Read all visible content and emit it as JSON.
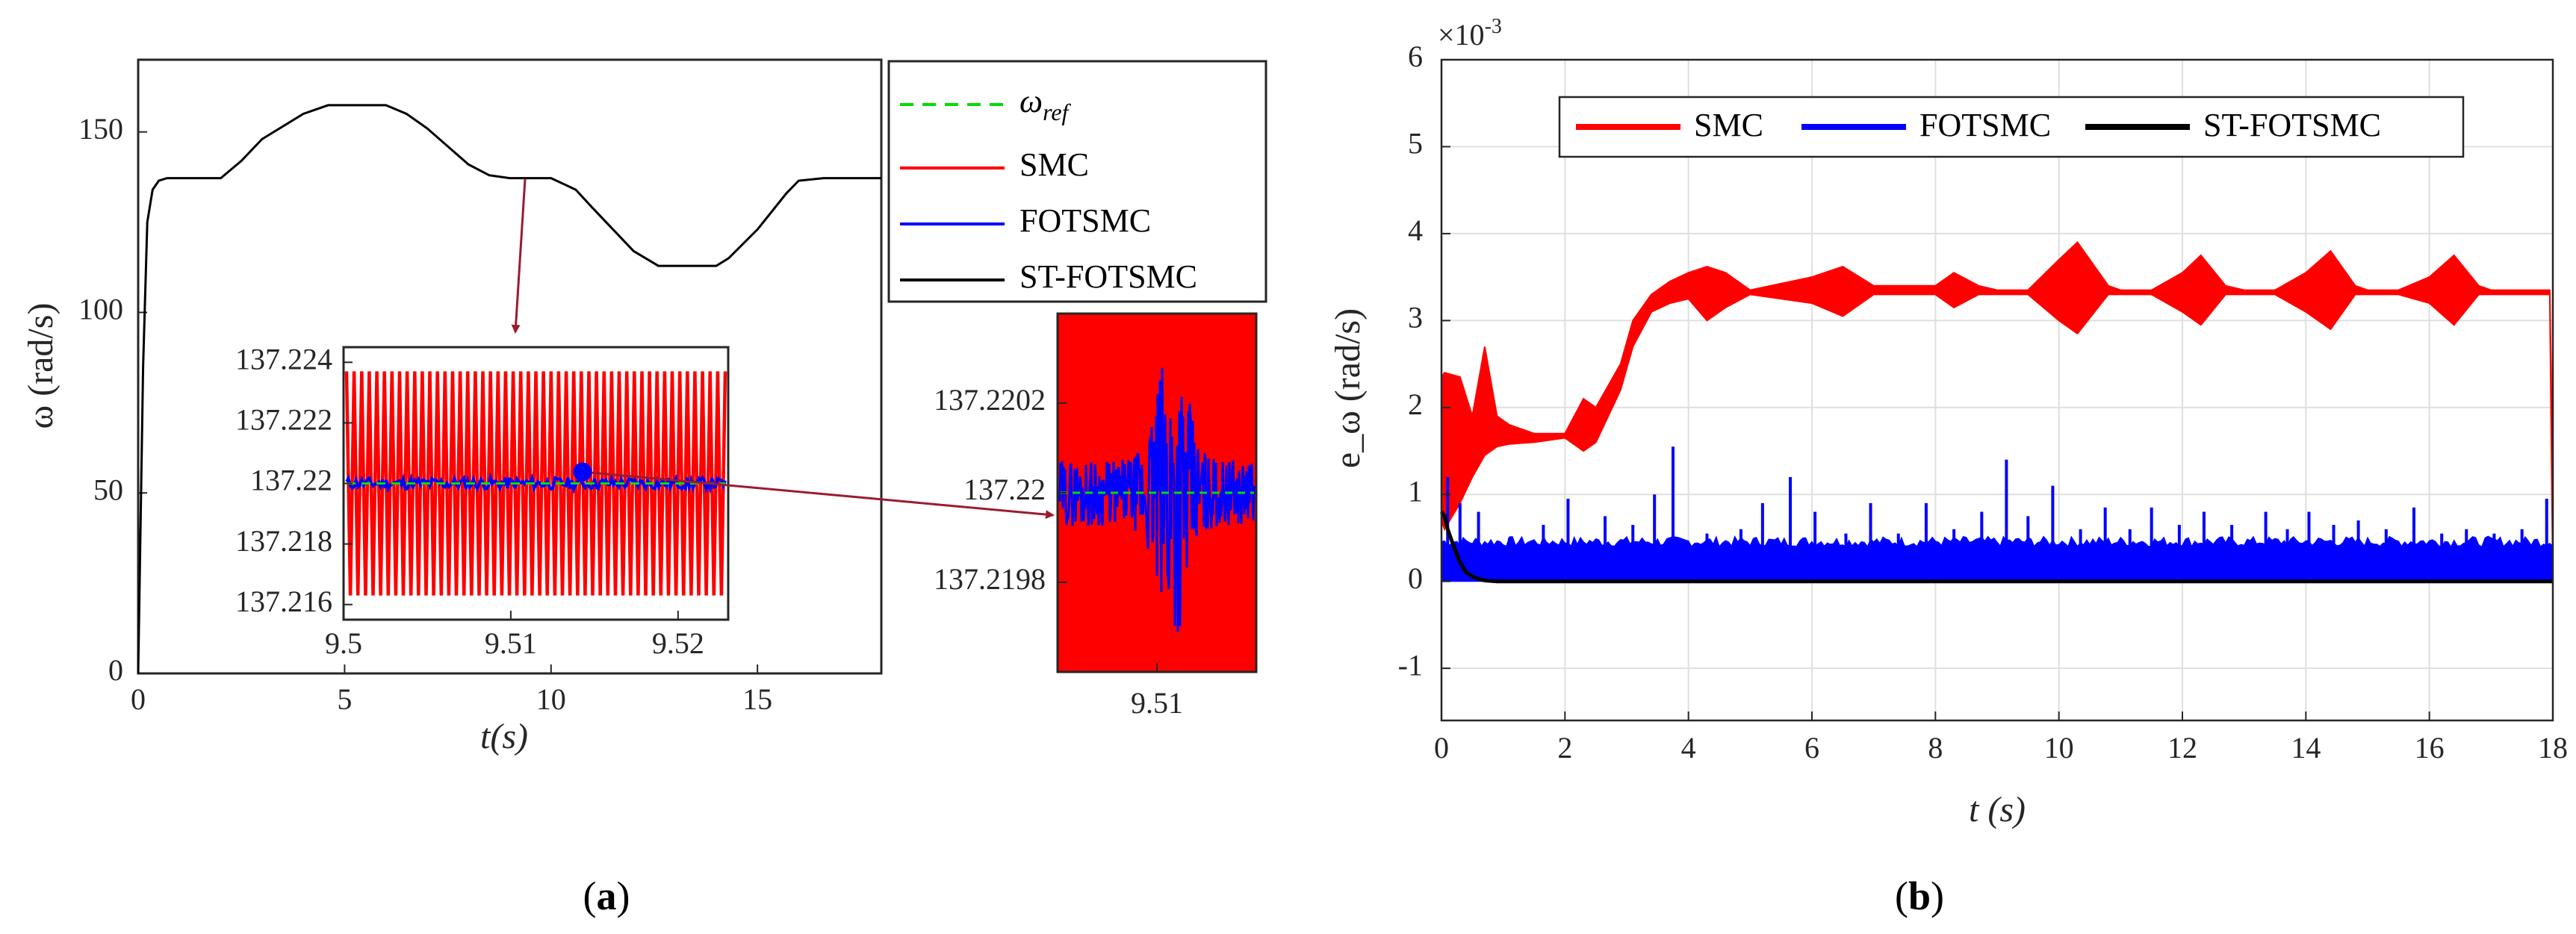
{
  "colors": {
    "smc": "#ff0000",
    "fotsmc": "#0000ff",
    "st_fotsmc": "#000000",
    "ref": "#00dd00",
    "arrow": "#9b1b30",
    "grid": "#dfdfdf",
    "axis": "#262626"
  },
  "chart_data": [
    {
      "id": "a-main",
      "type": "line",
      "ylabel": "ω (rad/s)",
      "xlabel": "t(s)",
      "xlim": [
        0,
        18
      ],
      "ylim": [
        0,
        170
      ],
      "xticks": [
        0,
        5,
        10,
        15
      ],
      "xtick_labels": [
        "0",
        "5",
        "10",
        "15"
      ],
      "yticks": [
        0,
        50,
        100,
        150
      ],
      "ytick_labels": [
        "0",
        "50",
        "100",
        "150"
      ],
      "series": [
        {
          "name": "ST-FOTSMC",
          "x": [
            0,
            0.12,
            0.22,
            0.35,
            0.5,
            0.7,
            1,
            2,
            2.5,
            3,
            4,
            4.6,
            5,
            5.5,
            6,
            6.5,
            7,
            8,
            8.5,
            9,
            9.5,
            10,
            10.6,
            11,
            12,
            12.6,
            13,
            14,
            14.3,
            15,
            15.7,
            16,
            16.6,
            17,
            18
          ],
          "y": [
            0,
            85,
            125,
            134,
            136.5,
            137.2,
            137.2,
            137.2,
            142,
            148,
            155,
            157.4,
            157.4,
            157.4,
            157.4,
            155,
            151,
            141,
            138,
            137.2,
            137.2,
            137.2,
            134,
            129,
            117,
            112.9,
            112.9,
            112.9,
            115,
            123,
            133,
            136.5,
            137.2,
            137.2,
            137.2
          ]
        }
      ]
    },
    {
      "id": "a-inset1",
      "type": "line",
      "xlim": [
        9.5,
        9.523
      ],
      "ylim": [
        137.2155,
        137.2245
      ],
      "xticks": [
        9.5,
        9.51,
        9.52
      ],
      "xtick_labels": [
        "9.5",
        "9.51",
        "9.52"
      ],
      "yticks": [
        137.216,
        137.218,
        137.22,
        137.222,
        137.224
      ],
      "ytick_labels": [
        "137.216",
        "137.218",
        "137.22",
        "137.222",
        "137.224"
      ],
      "series": [
        {
          "name": "SMC",
          "amplitude": 0.0037,
          "center": 137.22,
          "cycles": 50
        },
        {
          "name": "FOTSMC",
          "amplitude": 0.0002,
          "center": 137.22
        },
        {
          "name": "ω_ref",
          "value": 137.22
        }
      ]
    },
    {
      "id": "a-inset2",
      "type": "line",
      "xlim": [
        9.5096,
        9.5104
      ],
      "ylim": [
        137.2196,
        137.2204
      ],
      "xticks": [
        9.51
      ],
      "xtick_labels": [
        "9.51"
      ],
      "yticks": [
        137.2198,
        137.22,
        137.2202
      ],
      "ytick_labels": [
        "137.2198",
        "137.22",
        "137.2202"
      ],
      "series": [
        {
          "name": "SMC",
          "band": [
            137.2196,
            137.2204
          ]
        },
        {
          "name": "FOTSMC",
          "amplitude": 0.0003,
          "center": 137.22
        },
        {
          "name": "ω_ref",
          "value": 137.22
        }
      ]
    },
    {
      "id": "b",
      "type": "line",
      "ylabel": "e_ω (rad/s)",
      "xlabel": "t (s)",
      "exponent": "×10",
      "exponent_power": "-3",
      "xlim": [
        0,
        18
      ],
      "ylim": [
        -1.6,
        6
      ],
      "xticks": [
        0,
        2,
        4,
        6,
        8,
        10,
        12,
        14,
        16,
        18
      ],
      "xtick_labels": [
        "0",
        "2",
        "4",
        "6",
        "8",
        "10",
        "12",
        "14",
        "16",
        "18"
      ],
      "yticks": [
        -1,
        0,
        1,
        2,
        3,
        4,
        5,
        6
      ],
      "ytick_labels": [
        "-1",
        "0",
        "1",
        "2",
        "3",
        "4",
        "5",
        "6"
      ],
      "grid": true,
      "legend": "top-center",
      "series": [
        {
          "name": "SMC",
          "envelope_x": [
            0,
            0.05,
            0.3,
            0.5,
            0.7,
            0.9,
            1.1,
            1.5,
            2,
            2.3,
            2.5,
            2.9,
            3.1,
            3.4,
            3.7,
            4.0,
            4.3,
            4.6,
            5,
            6,
            6.5,
            7,
            7.5,
            8,
            8.3,
            8.7,
            9,
            9.5,
            10,
            10.3,
            10.8,
            11,
            11.5,
            12,
            12.3,
            12.7,
            13,
            13.5,
            14,
            14.4,
            14.8,
            15,
            15.5,
            16,
            16.4,
            16.8,
            17,
            17.5,
            17.95,
            18
          ],
          "upper": [
            2.35,
            2.4,
            2.35,
            1.9,
            2.7,
            1.9,
            1.8,
            1.7,
            1.7,
            2.1,
            2.0,
            2.5,
            3.0,
            3.3,
            3.45,
            3.55,
            3.62,
            3.55,
            3.35,
            3.5,
            3.62,
            3.4,
            3.4,
            3.4,
            3.55,
            3.4,
            3.35,
            3.35,
            3.7,
            3.9,
            3.4,
            3.35,
            3.35,
            3.55,
            3.75,
            3.4,
            3.35,
            3.35,
            3.55,
            3.8,
            3.4,
            3.35,
            3.35,
            3.5,
            3.75,
            3.4,
            3.35,
            3.35,
            3.35,
            1.0
          ],
          "lower": [
            0.7,
            0.6,
            0.9,
            1.2,
            1.45,
            1.55,
            1.58,
            1.6,
            1.65,
            1.5,
            1.6,
            2.2,
            2.7,
            3.1,
            3.2,
            3.25,
            3.0,
            3.15,
            3.3,
            3.2,
            3.05,
            3.3,
            3.3,
            3.3,
            3.15,
            3.3,
            3.3,
            3.3,
            3.0,
            2.85,
            3.3,
            3.3,
            3.3,
            3.1,
            2.95,
            3.3,
            3.3,
            3.3,
            3.1,
            2.9,
            3.3,
            3.3,
            3.3,
            3.2,
            2.95,
            3.3,
            3.3,
            3.3,
            3.3,
            0.0
          ]
        },
        {
          "name": "FOTSMC",
          "band": [
            0,
            0.4
          ],
          "spikes": [
            [
              0.1,
              1.2
            ],
            [
              0.3,
              0.9
            ],
            [
              0.6,
              0.8
            ],
            [
              1.1,
              0.5
            ],
            [
              1.65,
              0.65
            ],
            [
              2.05,
              0.95
            ],
            [
              2.65,
              0.75
            ],
            [
              3.1,
              0.65
            ],
            [
              3.45,
              1.0
            ],
            [
              3.75,
              1.55
            ],
            [
              4.3,
              0.55
            ],
            [
              4.85,
              0.6
            ],
            [
              5.2,
              0.9
            ],
            [
              5.65,
              1.2
            ],
            [
              6.05,
              0.8
            ],
            [
              6.55,
              0.55
            ],
            [
              6.95,
              0.9
            ],
            [
              7.4,
              0.55
            ],
            [
              7.85,
              0.9
            ],
            [
              8.3,
              0.6
            ],
            [
              8.75,
              0.8
            ],
            [
              9.15,
              1.4
            ],
            [
              9.5,
              0.75
            ],
            [
              9.9,
              1.1
            ],
            [
              10.35,
              0.6
            ],
            [
              10.75,
              0.85
            ],
            [
              11.15,
              0.6
            ],
            [
              11.5,
              0.85
            ],
            [
              11.95,
              0.65
            ],
            [
              12.35,
              0.8
            ],
            [
              12.8,
              0.65
            ],
            [
              13.35,
              0.8
            ],
            [
              13.7,
              0.6
            ],
            [
              14.05,
              0.8
            ],
            [
              14.45,
              0.65
            ],
            [
              14.85,
              0.7
            ],
            [
              15.3,
              0.6
            ],
            [
              15.75,
              0.85
            ],
            [
              16.2,
              0.55
            ],
            [
              16.6,
              0.6
            ],
            [
              17.05,
              0.55
            ],
            [
              17.5,
              0.6
            ],
            [
              17.9,
              0.95
            ]
          ]
        },
        {
          "name": "ST-FOTSMC",
          "x": [
            0,
            0.05,
            0.1,
            0.2,
            0.3,
            0.4,
            0.55,
            0.7,
            0.9,
            18
          ],
          "y": [
            0.8,
            0.75,
            0.6,
            0.4,
            0.22,
            0.1,
            0.04,
            0.01,
            0,
            0
          ]
        }
      ]
    }
  ],
  "legend_a": {
    "items": [
      {
        "label": "ω",
        "sub": "ref",
        "color": "#00dd00",
        "dashed": true
      },
      {
        "label": "SMC",
        "color": "#ff0000"
      },
      {
        "label": "FOTSMC",
        "color": "#0000ff"
      },
      {
        "label": "ST-FOTSMC",
        "color": "#000000"
      }
    ]
  },
  "legend_b": {
    "items": [
      {
        "label": "SMC",
        "color": "#ff0000"
      },
      {
        "label": "FOTSMC",
        "color": "#0000ff"
      },
      {
        "label": "ST-FOTSMC",
        "color": "#000000"
      }
    ]
  },
  "captions": {
    "a_letter": "a",
    "b_letter": "b"
  }
}
